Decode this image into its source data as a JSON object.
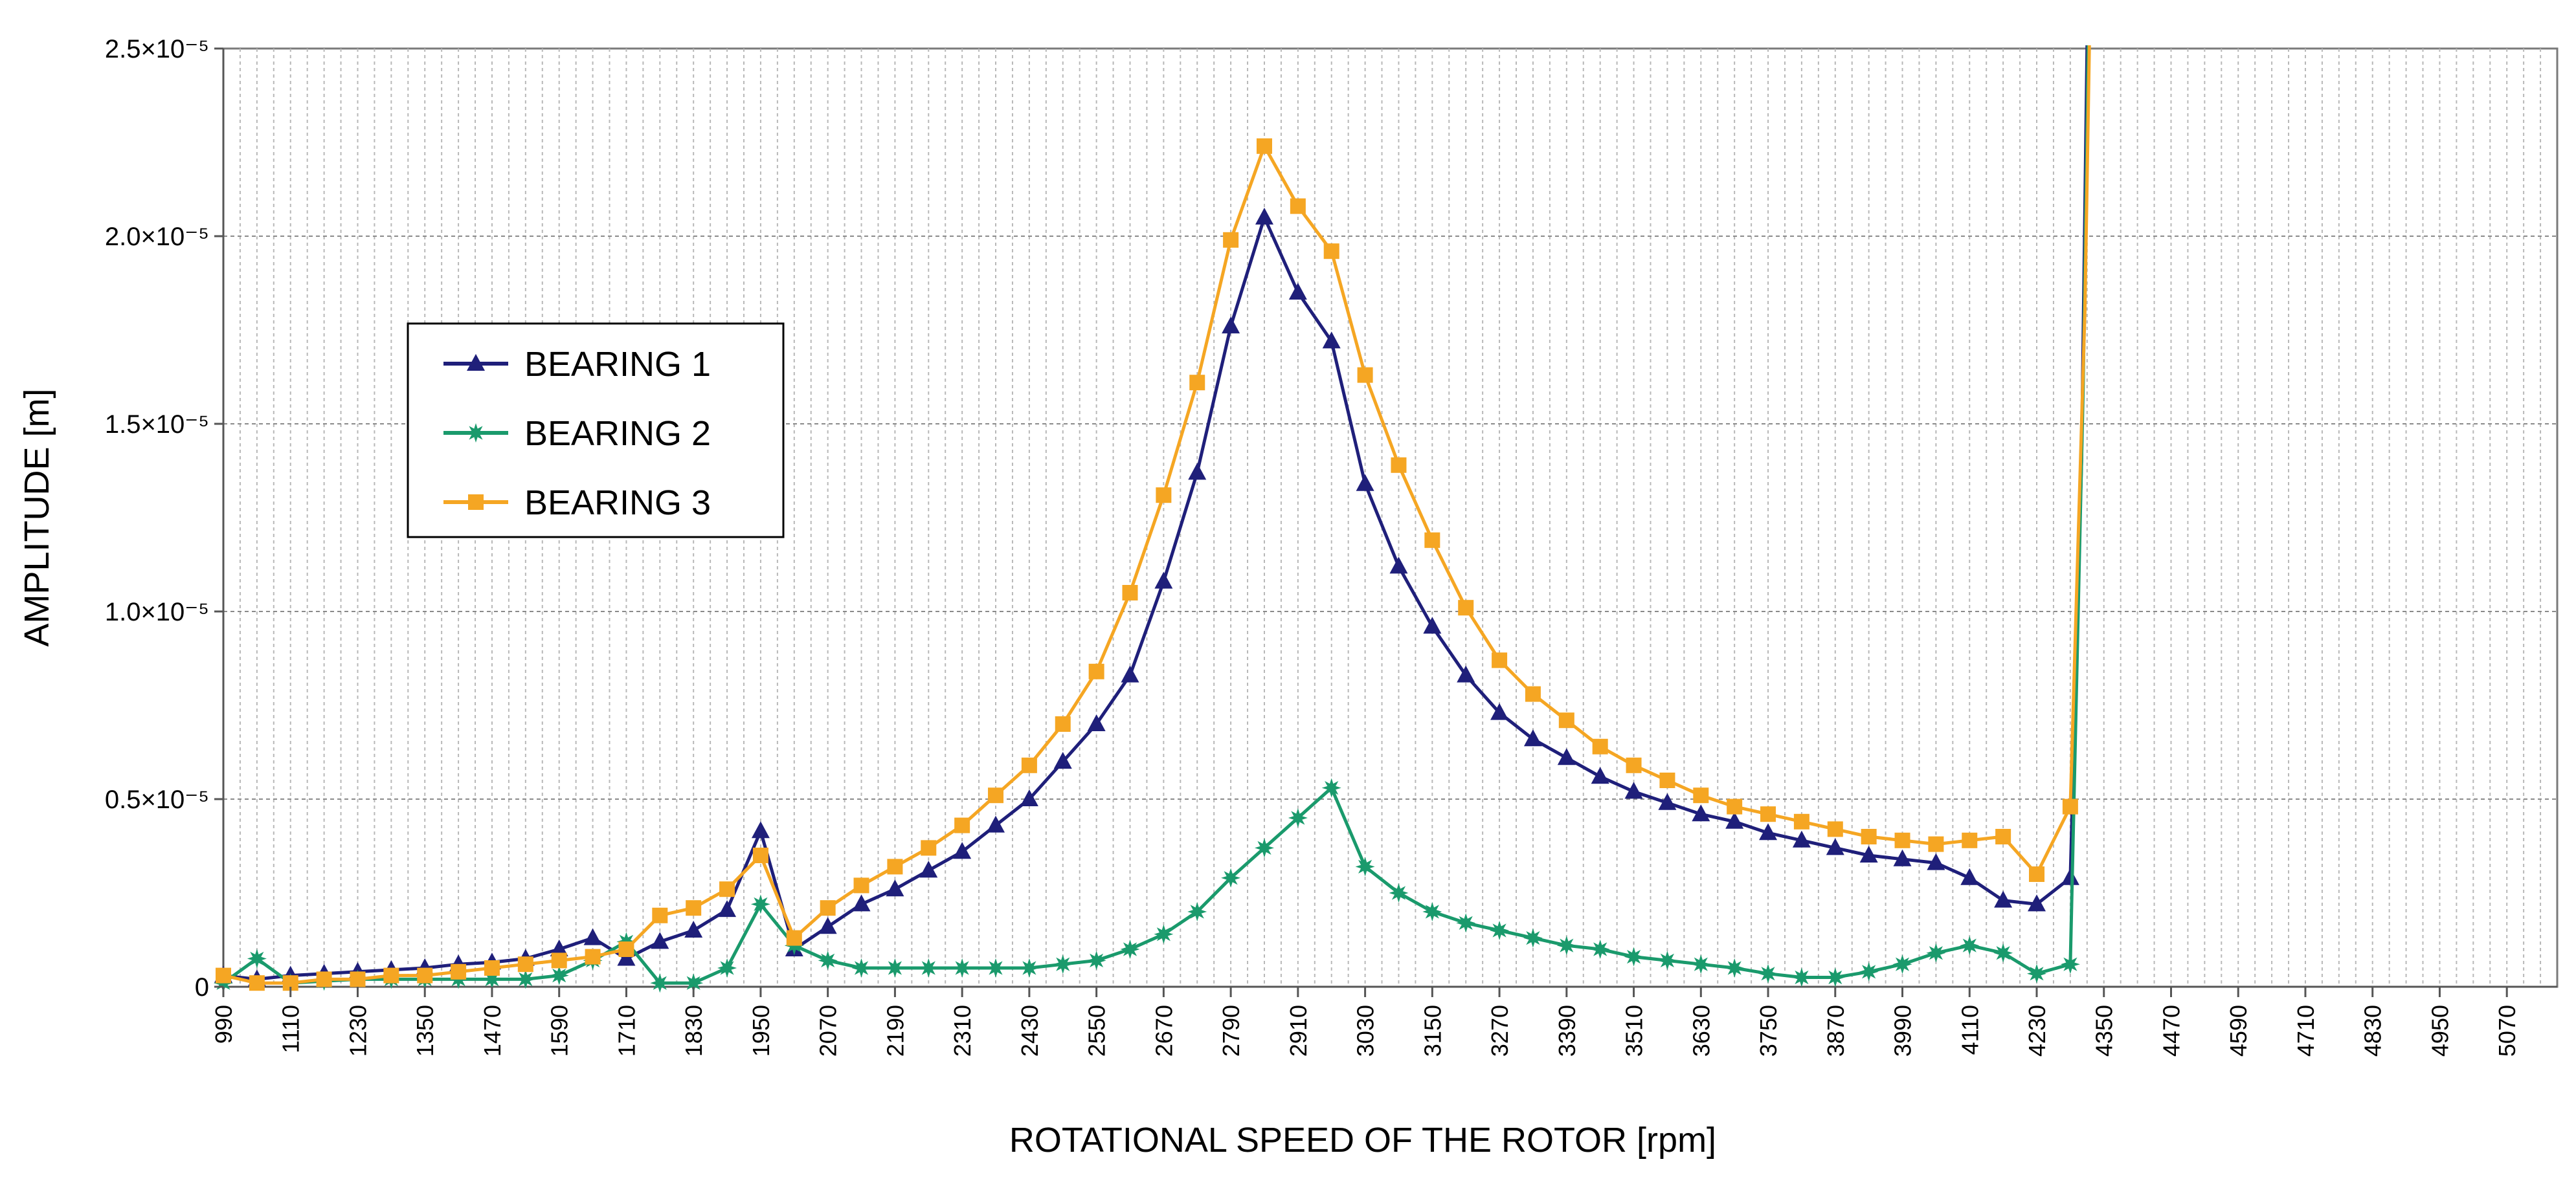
{
  "chart_data": {
    "type": "line",
    "title": "",
    "xlabel": "ROTATIONAL SPEED OF THE ROTOR [rpm]",
    "ylabel": "AMPLITUDE [m]",
    "xlim": [
      990,
      5160
    ],
    "ylim": [
      0,
      2.5e-05
    ],
    "grid": true,
    "x_tick_labels": [
      "990",
      "1110",
      "1230",
      "1350",
      "1470",
      "1590",
      "1710",
      "1830",
      "1950",
      "2070",
      "2190",
      "2310",
      "2430",
      "2550",
      "2670",
      "2790",
      "2910",
      "3030",
      "3150",
      "3270",
      "3390",
      "3510",
      "3630",
      "3750",
      "3870",
      "3990",
      "4110",
      "4230",
      "4350",
      "4470",
      "4590",
      "4710",
      "4830",
      "4950",
      "5070"
    ],
    "y_ticks": [
      {
        "value": 0,
        "label": "0"
      },
      {
        "value": 5e-06,
        "label": "0.5×10⁻⁵"
      },
      {
        "value": 1e-05,
        "label": "1.0×10⁻⁵"
      },
      {
        "value": 1.5e-05,
        "label": "1.5×10⁻⁵"
      },
      {
        "value": 2e-05,
        "label": "2.0×10⁻⁵"
      },
      {
        "value": 2.5e-05,
        "label": "2.5×10⁻⁵"
      }
    ],
    "legend_position": "middle-left",
    "x": [
      990,
      1050,
      1110,
      1170,
      1230,
      1290,
      1350,
      1410,
      1470,
      1530,
      1590,
      1650,
      1710,
      1770,
      1830,
      1890,
      1950,
      2010,
      2070,
      2130,
      2190,
      2250,
      2310,
      2370,
      2430,
      2490,
      2550,
      2610,
      2670,
      2730,
      2790,
      2850,
      2910,
      2970,
      3030,
      3090,
      3150,
      3210,
      3270,
      3330,
      3390,
      3450,
      3510,
      3570,
      3630,
      3690,
      3750,
      3810,
      3870,
      3930,
      3990,
      4050,
      4110,
      4170,
      4230,
      4290
    ],
    "series": [
      {
        "name": "BEARING 1",
        "color": "#1f1f7a",
        "marker": "triangle",
        "values": [
          0.3,
          0.2,
          0.3,
          0.35,
          0.4,
          0.45,
          0.5,
          0.6,
          0.65,
          0.75,
          1.0,
          1.3,
          0.75,
          1.2,
          1.5,
          2.05,
          4.15,
          1.0,
          1.6,
          2.2,
          2.6,
          3.1,
          3.6,
          4.3,
          5.0,
          6.0,
          7.0,
          8.3,
          10.8,
          13.7,
          17.6,
          20.5,
          18.5,
          17.2,
          13.4,
          11.2,
          9.6,
          8.3,
          7.3,
          6.6,
          6.1,
          5.6,
          5.2,
          4.9,
          4.6,
          4.4,
          4.1,
          3.9,
          3.7,
          3.5,
          3.4,
          3.3,
          2.9,
          2.3,
          2.2,
          2.9
        ]
      },
      {
        "name": "BEARING 2",
        "color": "#1a9a6c",
        "marker": "star",
        "values": [
          0.1,
          0.75,
          0.1,
          0.15,
          0.2,
          0.2,
          0.2,
          0.2,
          0.2,
          0.2,
          0.3,
          0.7,
          1.2,
          0.1,
          0.1,
          0.5,
          2.2,
          1.1,
          0.7,
          0.5,
          0.5,
          0.5,
          0.5,
          0.5,
          0.5,
          0.6,
          0.7,
          1.0,
          1.4,
          2.0,
          2.9,
          3.7,
          4.5,
          5.3,
          3.2,
          2.5,
          2.0,
          1.7,
          1.5,
          1.3,
          1.1,
          1.0,
          0.8,
          0.7,
          0.6,
          0.5,
          0.35,
          0.25,
          0.25,
          0.4,
          0.6,
          0.9,
          1.1,
          0.9,
          0.35,
          0.6
        ]
      },
      {
        "name": "BEARING 3",
        "color": "#f5a623",
        "marker": "square",
        "values": [
          0.3,
          0.1,
          0.1,
          0.2,
          0.2,
          0.3,
          0.3,
          0.4,
          0.5,
          0.6,
          0.7,
          0.8,
          1.0,
          1.9,
          2.1,
          2.6,
          3.5,
          1.3,
          2.1,
          2.7,
          3.2,
          3.7,
          4.3,
          5.1,
          5.9,
          7.0,
          8.4,
          10.5,
          13.1,
          16.1,
          19.9,
          22.4,
          20.8,
          19.6,
          16.3,
          13.9,
          11.9,
          10.1,
          8.7,
          7.8,
          7.1,
          6.4,
          5.9,
          5.5,
          5.1,
          4.8,
          4.6,
          4.4,
          4.2,
          4.0,
          3.9,
          3.8,
          3.9,
          4.0,
          3.0,
          4.8
        ]
      }
    ],
    "y_scale_note": "series values are in units of 1e-6 m",
    "end_spike": {
      "x_values_rpm": [
        4290,
        4310,
        4320
      ],
      "value_description": "all three curves rise sharply off the top of the plot near 4320 rpm"
    }
  }
}
